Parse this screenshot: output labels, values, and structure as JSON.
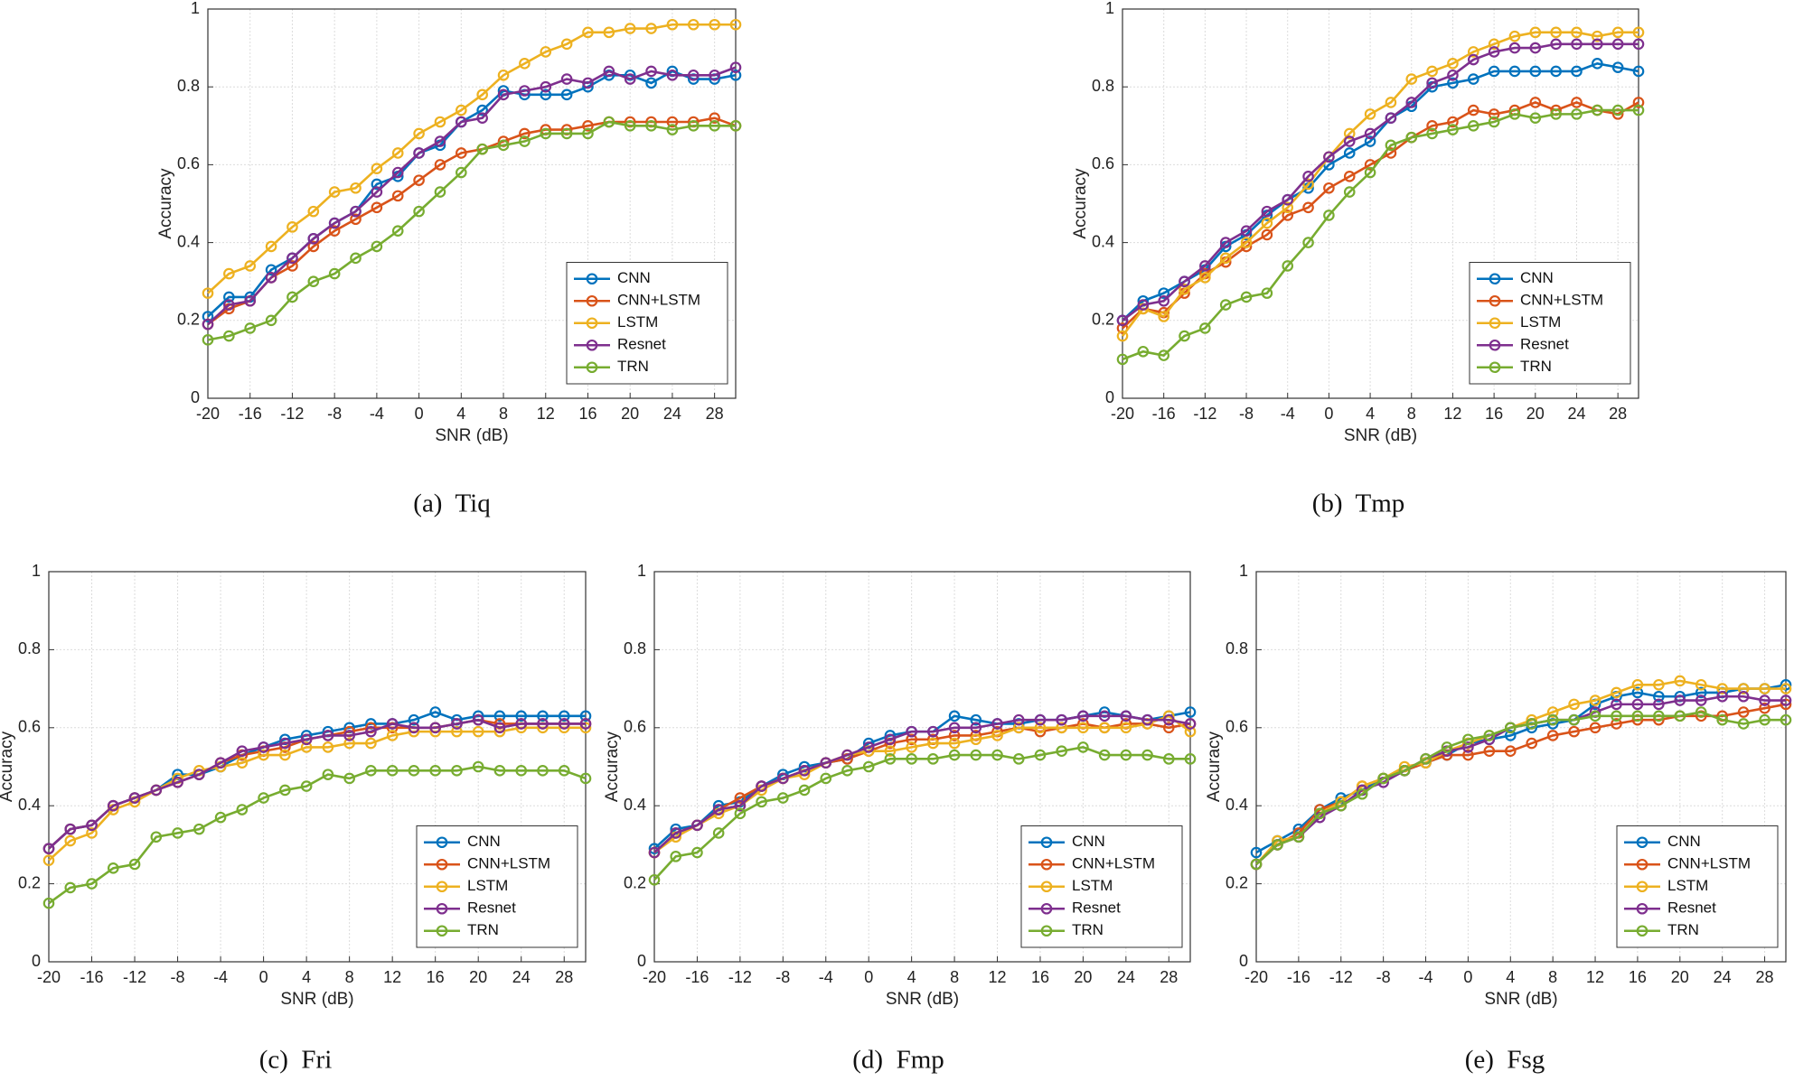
{
  "chart_data": [
    {
      "type": "line",
      "caption": "(a)  Tiq",
      "xlabel": "SNR (dB)",
      "ylabel": "Accuracy",
      "x": [
        -20,
        -18,
        -16,
        -14,
        -12,
        -10,
        -8,
        -6,
        -4,
        -2,
        0,
        2,
        4,
        6,
        8,
        10,
        12,
        14,
        16,
        18,
        20,
        22,
        24,
        26,
        28,
        30
      ],
      "xlim": [
        -20,
        30
      ],
      "xticks": [
        -20,
        -16,
        -12,
        -8,
        -4,
        0,
        4,
        8,
        12,
        16,
        20,
        24,
        28
      ],
      "ylim": [
        0,
        1
      ],
      "yticks": [
        0,
        0.2,
        0.4,
        0.6,
        0.8,
        1
      ],
      "grid": true,
      "legend": "lower right",
      "series": [
        {
          "name": "CNN",
          "color": "#0072BD",
          "values": [
            0.21,
            0.26,
            0.26,
            0.33,
            0.36,
            0.41,
            0.45,
            0.48,
            0.55,
            0.57,
            0.63,
            0.65,
            0.71,
            0.74,
            0.79,
            0.78,
            0.78,
            0.78,
            0.8,
            0.83,
            0.83,
            0.81,
            0.84,
            0.82,
            0.82,
            0.83
          ]
        },
        {
          "name": "CNN+LSTM",
          "color": "#D95319",
          "values": [
            0.19,
            0.23,
            0.25,
            0.31,
            0.34,
            0.39,
            0.43,
            0.46,
            0.49,
            0.52,
            0.56,
            0.6,
            0.63,
            0.64,
            0.66,
            0.68,
            0.69,
            0.69,
            0.7,
            0.71,
            0.71,
            0.71,
            0.71,
            0.71,
            0.72,
            0.7
          ]
        },
        {
          "name": "LSTM",
          "color": "#EDB120",
          "values": [
            0.27,
            0.32,
            0.34,
            0.39,
            0.44,
            0.48,
            0.53,
            0.54,
            0.59,
            0.63,
            0.68,
            0.71,
            0.74,
            0.78,
            0.83,
            0.86,
            0.89,
            0.91,
            0.94,
            0.94,
            0.95,
            0.95,
            0.96,
            0.96,
            0.96,
            0.96
          ]
        },
        {
          "name": "Resnet",
          "color": "#7E2F8E",
          "values": [
            0.19,
            0.24,
            0.25,
            0.31,
            0.36,
            0.41,
            0.45,
            0.48,
            0.53,
            0.58,
            0.63,
            0.66,
            0.71,
            0.72,
            0.78,
            0.79,
            0.8,
            0.82,
            0.81,
            0.84,
            0.82,
            0.84,
            0.83,
            0.83,
            0.83,
            0.85
          ]
        },
        {
          "name": "TRN",
          "color": "#77AC30",
          "values": [
            0.15,
            0.16,
            0.18,
            0.2,
            0.26,
            0.3,
            0.32,
            0.36,
            0.39,
            0.43,
            0.48,
            0.53,
            0.58,
            0.64,
            0.65,
            0.66,
            0.68,
            0.68,
            0.68,
            0.71,
            0.7,
            0.7,
            0.69,
            0.7,
            0.7,
            0.7
          ]
        }
      ]
    },
    {
      "type": "line",
      "caption": "(b)  Tmp",
      "xlabel": "SNR (dB)",
      "ylabel": "Accuracy",
      "x": [
        -20,
        -18,
        -16,
        -14,
        -12,
        -10,
        -8,
        -6,
        -4,
        -2,
        0,
        2,
        4,
        6,
        8,
        10,
        12,
        14,
        16,
        18,
        20,
        22,
        24,
        26,
        28,
        30
      ],
      "xlim": [
        -20,
        30
      ],
      "xticks": [
        -20,
        -16,
        -12,
        -8,
        -4,
        0,
        4,
        8,
        12,
        16,
        20,
        24,
        28
      ],
      "ylim": [
        0,
        1
      ],
      "yticks": [
        0,
        0.2,
        0.4,
        0.6,
        0.8,
        1
      ],
      "grid": true,
      "legend": "lower right",
      "series": [
        {
          "name": "CNN",
          "color": "#0072BD",
          "values": [
            0.2,
            0.25,
            0.27,
            0.3,
            0.33,
            0.39,
            0.42,
            0.47,
            0.51,
            0.54,
            0.6,
            0.63,
            0.66,
            0.72,
            0.75,
            0.8,
            0.81,
            0.82,
            0.84,
            0.84,
            0.84,
            0.84,
            0.84,
            0.86,
            0.85,
            0.84
          ]
        },
        {
          "name": "CNN+LSTM",
          "color": "#D95319",
          "values": [
            0.18,
            0.23,
            0.22,
            0.27,
            0.32,
            0.35,
            0.39,
            0.42,
            0.47,
            0.49,
            0.54,
            0.57,
            0.6,
            0.63,
            0.67,
            0.7,
            0.71,
            0.74,
            0.73,
            0.74,
            0.76,
            0.74,
            0.76,
            0.74,
            0.73,
            0.76
          ]
        },
        {
          "name": "LSTM",
          "color": "#EDB120",
          "values": [
            0.16,
            0.23,
            0.21,
            0.28,
            0.31,
            0.36,
            0.4,
            0.45,
            0.49,
            0.55,
            0.62,
            0.68,
            0.73,
            0.76,
            0.82,
            0.84,
            0.86,
            0.89,
            0.91,
            0.93,
            0.94,
            0.94,
            0.94,
            0.93,
            0.94,
            0.94
          ]
        },
        {
          "name": "Resnet",
          "color": "#7E2F8E",
          "values": [
            0.2,
            0.24,
            0.25,
            0.3,
            0.34,
            0.4,
            0.43,
            0.48,
            0.51,
            0.57,
            0.62,
            0.66,
            0.68,
            0.72,
            0.76,
            0.81,
            0.83,
            0.87,
            0.89,
            0.9,
            0.9,
            0.91,
            0.91,
            0.91,
            0.91,
            0.91
          ]
        },
        {
          "name": "TRN",
          "color": "#77AC30",
          "values": [
            0.1,
            0.12,
            0.11,
            0.16,
            0.18,
            0.24,
            0.26,
            0.27,
            0.34,
            0.4,
            0.47,
            0.53,
            0.58,
            0.65,
            0.67,
            0.68,
            0.69,
            0.7,
            0.71,
            0.73,
            0.72,
            0.73,
            0.73,
            0.74,
            0.74,
            0.74
          ]
        }
      ]
    },
    {
      "type": "line",
      "caption": "(c)  Fri",
      "xlabel": "SNR (dB)",
      "ylabel": "Accuracy",
      "x": [
        -20,
        -18,
        -16,
        -14,
        -12,
        -10,
        -8,
        -6,
        -4,
        -2,
        0,
        2,
        4,
        6,
        8,
        10,
        12,
        14,
        16,
        18,
        20,
        22,
        24,
        26,
        28,
        30
      ],
      "xlim": [
        -20,
        30
      ],
      "xticks": [
        -20,
        -16,
        -12,
        -8,
        -4,
        0,
        4,
        8,
        12,
        16,
        20,
        24,
        28
      ],
      "ylim": [
        0,
        1
      ],
      "yticks": [
        0,
        0.2,
        0.4,
        0.6,
        0.8,
        1
      ],
      "grid": true,
      "legend": "lower right",
      "series": [
        {
          "name": "CNN",
          "color": "#0072BD",
          "values": [
            0.29,
            0.34,
            0.35,
            0.4,
            0.42,
            0.44,
            0.48,
            0.48,
            0.5,
            0.53,
            0.55,
            0.57,
            0.58,
            0.59,
            0.6,
            0.61,
            0.61,
            0.62,
            0.64,
            0.62,
            0.63,
            0.63,
            0.63,
            0.63,
            0.63,
            0.63
          ]
        },
        {
          "name": "CNN+LSTM",
          "color": "#D95319",
          "values": [
            0.29,
            0.34,
            0.35,
            0.4,
            0.42,
            0.44,
            0.46,
            0.48,
            0.51,
            0.53,
            0.54,
            0.55,
            0.57,
            0.58,
            0.59,
            0.6,
            0.6,
            0.6,
            0.6,
            0.61,
            0.62,
            0.61,
            0.61,
            0.61,
            0.61,
            0.61
          ]
        },
        {
          "name": "LSTM",
          "color": "#EDB120",
          "values": [
            0.26,
            0.31,
            0.33,
            0.39,
            0.41,
            0.44,
            0.47,
            0.49,
            0.5,
            0.51,
            0.53,
            0.53,
            0.55,
            0.55,
            0.56,
            0.56,
            0.58,
            0.59,
            0.59,
            0.59,
            0.59,
            0.59,
            0.6,
            0.6,
            0.6,
            0.6
          ]
        },
        {
          "name": "Resnet",
          "color": "#7E2F8E",
          "values": [
            0.29,
            0.34,
            0.35,
            0.4,
            0.42,
            0.44,
            0.46,
            0.48,
            0.51,
            0.54,
            0.55,
            0.56,
            0.57,
            0.58,
            0.58,
            0.59,
            0.61,
            0.6,
            0.6,
            0.61,
            0.62,
            0.6,
            0.61,
            0.61,
            0.61,
            0.61
          ]
        },
        {
          "name": "TRN",
          "color": "#77AC30",
          "values": [
            0.15,
            0.19,
            0.2,
            0.24,
            0.25,
            0.32,
            0.33,
            0.34,
            0.37,
            0.39,
            0.42,
            0.44,
            0.45,
            0.48,
            0.47,
            0.49,
            0.49,
            0.49,
            0.49,
            0.49,
            0.5,
            0.49,
            0.49,
            0.49,
            0.49,
            0.47
          ]
        }
      ]
    },
    {
      "type": "line",
      "caption": "(d)  Fmp",
      "xlabel": "SNR (dB)",
      "ylabel": "Accuracy",
      "x": [
        -20,
        -18,
        -16,
        -14,
        -12,
        -10,
        -8,
        -6,
        -4,
        -2,
        0,
        2,
        4,
        6,
        8,
        10,
        12,
        14,
        16,
        18,
        20,
        22,
        24,
        26,
        28,
        30
      ],
      "xlim": [
        -20,
        30
      ],
      "xticks": [
        -20,
        -16,
        -12,
        -8,
        -4,
        0,
        4,
        8,
        12,
        16,
        20,
        24,
        28
      ],
      "ylim": [
        0,
        1
      ],
      "yticks": [
        0,
        0.2,
        0.4,
        0.6,
        0.8,
        1
      ],
      "grid": true,
      "legend": "lower right",
      "series": [
        {
          "name": "CNN",
          "color": "#0072BD",
          "values": [
            0.29,
            0.34,
            0.35,
            0.4,
            0.41,
            0.45,
            0.48,
            0.5,
            0.51,
            0.52,
            0.56,
            0.58,
            0.59,
            0.59,
            0.63,
            0.62,
            0.61,
            0.61,
            0.62,
            0.62,
            0.63,
            0.64,
            0.63,
            0.62,
            0.63,
            0.64
          ]
        },
        {
          "name": "CNN+LSTM",
          "color": "#D95319",
          "values": [
            0.28,
            0.33,
            0.35,
            0.39,
            0.42,
            0.45,
            0.47,
            0.49,
            0.51,
            0.52,
            0.54,
            0.56,
            0.57,
            0.57,
            0.58,
            0.58,
            0.59,
            0.6,
            0.59,
            0.6,
            0.61,
            0.6,
            0.61,
            0.61,
            0.6,
            0.61
          ]
        },
        {
          "name": "LSTM",
          "color": "#EDB120",
          "values": [
            0.28,
            0.32,
            0.35,
            0.38,
            0.4,
            0.44,
            0.47,
            0.48,
            0.51,
            0.53,
            0.54,
            0.54,
            0.55,
            0.56,
            0.56,
            0.57,
            0.58,
            0.6,
            0.6,
            0.6,
            0.6,
            0.6,
            0.6,
            0.61,
            0.63,
            0.59
          ]
        },
        {
          "name": "Resnet",
          "color": "#7E2F8E",
          "values": [
            0.28,
            0.33,
            0.35,
            0.39,
            0.4,
            0.45,
            0.47,
            0.49,
            0.51,
            0.53,
            0.55,
            0.57,
            0.59,
            0.59,
            0.6,
            0.6,
            0.61,
            0.62,
            0.62,
            0.62,
            0.63,
            0.63,
            0.63,
            0.62,
            0.62,
            0.61
          ]
        },
        {
          "name": "TRN",
          "color": "#77AC30",
          "values": [
            0.21,
            0.27,
            0.28,
            0.33,
            0.38,
            0.41,
            0.42,
            0.44,
            0.47,
            0.49,
            0.5,
            0.52,
            0.52,
            0.52,
            0.53,
            0.53,
            0.53,
            0.52,
            0.53,
            0.54,
            0.55,
            0.53,
            0.53,
            0.53,
            0.52,
            0.52
          ]
        }
      ]
    },
    {
      "type": "line",
      "caption": "(e)  Fsg",
      "xlabel": "SNR (dB)",
      "ylabel": "Accuracy",
      "x": [
        -20,
        -18,
        -16,
        -14,
        -12,
        -10,
        -8,
        -6,
        -4,
        -2,
        0,
        2,
        4,
        6,
        8,
        10,
        12,
        14,
        16,
        18,
        20,
        22,
        24,
        26,
        28,
        30
      ],
      "xlim": [
        -20,
        30
      ],
      "xticks": [
        -20,
        -16,
        -12,
        -8,
        -4,
        0,
        4,
        8,
        12,
        16,
        20,
        24,
        28
      ],
      "ylim": [
        0,
        1
      ],
      "yticks": [
        0,
        0.2,
        0.4,
        0.6,
        0.8,
        1
      ],
      "grid": true,
      "legend": "lower right",
      "series": [
        {
          "name": "CNN",
          "color": "#0072BD",
          "values": [
            0.28,
            0.31,
            0.34,
            0.39,
            0.42,
            0.44,
            0.47,
            0.49,
            0.51,
            0.53,
            0.56,
            0.57,
            0.58,
            0.6,
            0.61,
            0.62,
            0.66,
            0.68,
            0.69,
            0.68,
            0.68,
            0.69,
            0.69,
            0.7,
            0.7,
            0.71
          ]
        },
        {
          "name": "CNN+LSTM",
          "color": "#D95319",
          "values": [
            0.25,
            0.3,
            0.33,
            0.39,
            0.41,
            0.45,
            0.47,
            0.49,
            0.51,
            0.53,
            0.53,
            0.54,
            0.54,
            0.56,
            0.58,
            0.59,
            0.6,
            0.61,
            0.62,
            0.62,
            0.63,
            0.63,
            0.63,
            0.64,
            0.65,
            0.66
          ]
        },
        {
          "name": "LSTM",
          "color": "#EDB120",
          "values": [
            0.25,
            0.31,
            0.32,
            0.38,
            0.41,
            0.45,
            0.47,
            0.5,
            0.51,
            0.54,
            0.56,
            0.58,
            0.6,
            0.62,
            0.64,
            0.66,
            0.67,
            0.69,
            0.71,
            0.71,
            0.72,
            0.71,
            0.7,
            0.7,
            0.7,
            0.7
          ]
        },
        {
          "name": "Resnet",
          "color": "#7E2F8E",
          "values": [
            0.25,
            0.3,
            0.32,
            0.37,
            0.4,
            0.44,
            0.46,
            0.49,
            0.52,
            0.54,
            0.55,
            0.57,
            0.6,
            0.61,
            0.62,
            0.62,
            0.64,
            0.66,
            0.66,
            0.66,
            0.67,
            0.67,
            0.68,
            0.68,
            0.67,
            0.67
          ]
        },
        {
          "name": "TRN",
          "color": "#77AC30",
          "values": [
            0.25,
            0.3,
            0.32,
            0.38,
            0.4,
            0.43,
            0.47,
            0.49,
            0.52,
            0.55,
            0.57,
            0.58,
            0.6,
            0.61,
            0.62,
            0.62,
            0.63,
            0.63,
            0.63,
            0.63,
            0.63,
            0.64,
            0.62,
            0.61,
            0.62,
            0.62
          ]
        }
      ]
    }
  ]
}
